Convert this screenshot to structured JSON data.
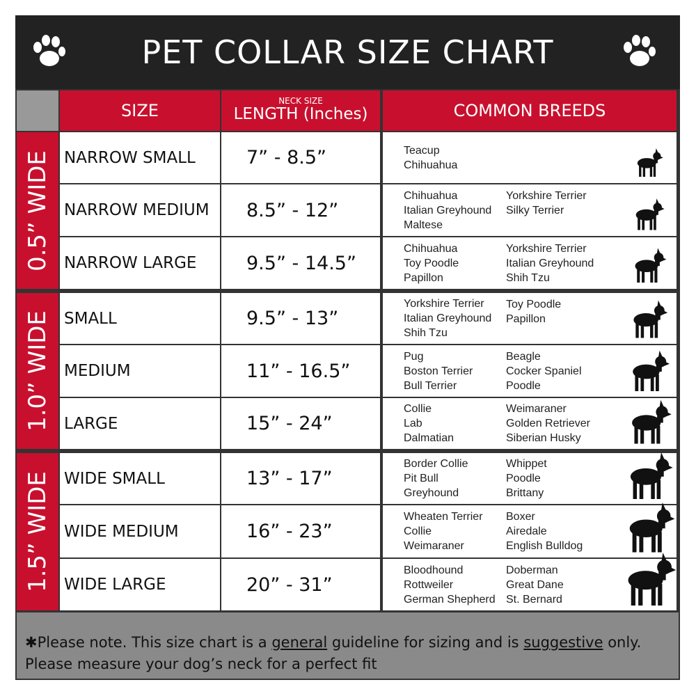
{
  "header": {
    "title": "PET COLLAR SIZE CHART"
  },
  "table": {
    "columns": {
      "size": "SIZE",
      "neck": "NECK SIZE",
      "length": "LENGTH (Inches)",
      "breeds": "COMMON BREEDS"
    },
    "groups": [
      {
        "label": "0.5” WIDE",
        "rows": [
          {
            "size": "NARROW SMALL",
            "length": "7” - 8.5”",
            "breeds": [
              [
                "Teacup",
                "Chihuahua"
              ],
              []
            ]
          },
          {
            "size": "NARROW MEDIUM",
            "length": "8.5” - 12”",
            "breeds": [
              [
                "Chihuahua",
                "Italian Greyhound",
                "Maltese"
              ],
              [
                "Yorkshire Terrier",
                "Silky Terrier"
              ]
            ]
          },
          {
            "size": "NARROW LARGE",
            "length": "9.5” - 14.5”",
            "breeds": [
              [
                "Chihuahua",
                "Toy Poodle",
                "Papillon"
              ],
              [
                "Yorkshire Terrier",
                "Italian Greyhound",
                "Shih Tzu"
              ]
            ]
          }
        ]
      },
      {
        "label": "1.0” WIDE",
        "rows": [
          {
            "size": "SMALL",
            "length": "9.5” - 13”",
            "breeds": [
              [
                "Yorkshire Terrier",
                "Italian Greyhound",
                "Shih Tzu"
              ],
              [
                "Toy Poodle",
                "Papillon"
              ]
            ]
          },
          {
            "size": "MEDIUM",
            "length": "11” - 16.5”",
            "breeds": [
              [
                "Pug",
                "Boston Terrier",
                "Bull Terrier"
              ],
              [
                "Beagle",
                "Cocker Spaniel",
                "Poodle"
              ]
            ]
          },
          {
            "size": "LARGE",
            "length": "15” - 24”",
            "breeds": [
              [
                "Collie",
                "Lab",
                "Dalmatian"
              ],
              [
                "Weimaraner",
                "Golden Retriever",
                "Siberian Husky"
              ]
            ]
          }
        ]
      },
      {
        "label": "1.5” WIDE",
        "rows": [
          {
            "size": "WIDE SMALL",
            "length": "13” - 17”",
            "breeds": [
              [
                "Border Collie",
                "Pit Bull",
                "Greyhound"
              ],
              [
                "Whippet",
                "Poodle",
                "Brittany"
              ]
            ]
          },
          {
            "size": "WIDE MEDIUM",
            "length": "16” - 23”",
            "breeds": [
              [
                "Wheaten Terrier",
                "Collie",
                "Weimaraner"
              ],
              [
                "Boxer",
                "Airedale",
                "English Bulldog"
              ]
            ]
          },
          {
            "size": "WIDE LARGE",
            "length": "20” - 31”",
            "breeds": [
              [
                "Bloodhound",
                "Rottweiler",
                "German Shepherd"
              ],
              [
                "Doberman",
                "Great Dane",
                "St. Bernard"
              ]
            ]
          }
        ]
      }
    ]
  },
  "note": {
    "line1": [
      "✱Please note. This size chart is a",
      "general",
      "guideline for sizing and is",
      "suggestive",
      "only."
    ],
    "line2": "Please measure your dog’s neck for a perfect fit"
  }
}
